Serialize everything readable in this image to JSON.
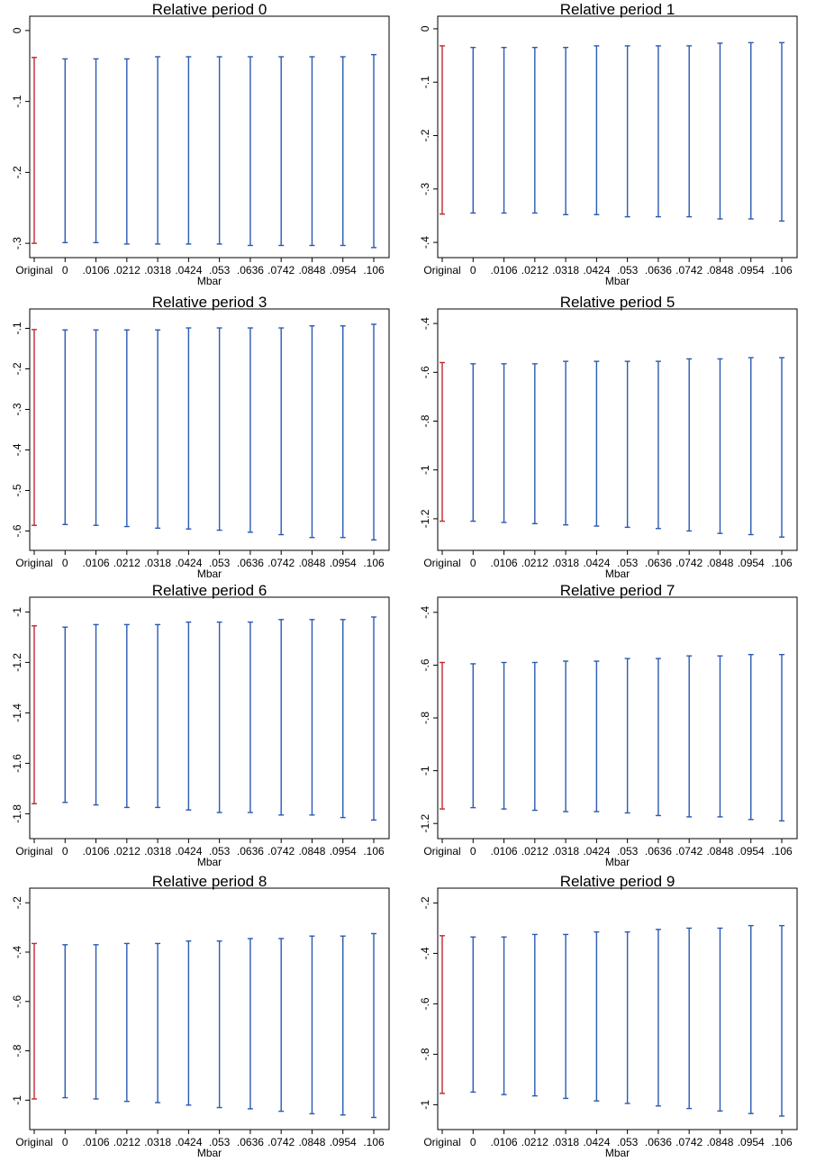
{
  "chart_data": [
    {
      "type": "errorbar",
      "title": "Relative period 0",
      "xlabel": "Mbar",
      "categories": [
        "Original",
        "0",
        ".0106",
        ".0212",
        ".0318",
        ".0424",
        ".053",
        ".0636",
        ".0742",
        ".0848",
        ".0954",
        ".106"
      ],
      "yticks": [
        0,
        -0.1,
        -0.2,
        -0.3
      ],
      "ytick_labels": [
        "0",
        "-.1",
        "-.2",
        "-.3"
      ],
      "ylim": [
        -0.31,
        0.01
      ],
      "lower": [
        -0.3,
        -0.299,
        -0.299,
        -0.301,
        -0.301,
        -0.301,
        -0.301,
        -0.303,
        -0.303,
        -0.303,
        -0.303,
        -0.306
      ],
      "upper": [
        -0.038,
        -0.04,
        -0.04,
        -0.04,
        -0.037,
        -0.037,
        -0.037,
        -0.037,
        -0.037,
        -0.037,
        -0.037,
        -0.034
      ],
      "colors": {
        "original": "#c0282d",
        "sensitivity": "#2a5ab3"
      }
    },
    {
      "type": "errorbar",
      "title": "Relative period 1",
      "xlabel": "Mbar",
      "categories": [
        "Original",
        "0",
        ".0106",
        ".0212",
        ".0318",
        ".0424",
        ".053",
        ".0636",
        ".0742",
        ".0848",
        ".0954",
        ".106"
      ],
      "yticks": [
        0,
        -0.1,
        -0.2,
        -0.3,
        -0.4
      ],
      "ytick_labels": [
        "0",
        "-.1",
        "-.2",
        "-.3",
        "-.4"
      ],
      "ylim": [
        -0.415,
        0.01
      ],
      "lower": [
        -0.347,
        -0.345,
        -0.345,
        -0.345,
        -0.348,
        -0.348,
        -0.352,
        -0.352,
        -0.352,
        -0.356,
        -0.356,
        -0.36
      ],
      "upper": [
        -0.032,
        -0.035,
        -0.035,
        -0.035,
        -0.035,
        -0.032,
        -0.032,
        -0.032,
        -0.032,
        -0.027,
        -0.026,
        -0.026
      ],
      "colors": {
        "original": "#c0282d",
        "sensitivity": "#2a5ab3"
      }
    },
    {
      "type": "errorbar",
      "title": "Relative period 3",
      "xlabel": "Mbar",
      "categories": [
        "Original",
        "0",
        ".0106",
        ".0212",
        ".0318",
        ".0424",
        ".053",
        ".0636",
        ".0742",
        ".0848",
        ".0954",
        ".106"
      ],
      "yticks": [
        -0.1,
        -0.2,
        -0.3,
        -0.4,
        -0.5,
        -0.6
      ],
      "ytick_labels": [
        "-.1",
        "-.2",
        "-.3",
        "-.4",
        "-.5",
        "-.6"
      ],
      "ylim": [
        -0.63,
        -0.07
      ],
      "lower": [
        -0.586,
        -0.584,
        -0.586,
        -0.589,
        -0.593,
        -0.595,
        -0.598,
        -0.603,
        -0.609,
        -0.616,
        -0.616,
        -0.622
      ],
      "upper": [
        -0.103,
        -0.104,
        -0.104,
        -0.104,
        -0.104,
        -0.099,
        -0.099,
        -0.099,
        -0.099,
        -0.094,
        -0.094,
        -0.09
      ],
      "colors": {
        "original": "#c0282d",
        "sensitivity": "#2a5ab3"
      }
    },
    {
      "type": "errorbar",
      "title": "Relative period 5",
      "xlabel": "Mbar",
      "categories": [
        "Original",
        "0",
        ".0106",
        ".0212",
        ".0318",
        ".0424",
        ".053",
        ".0636",
        ".0742",
        ".0848",
        ".0954",
        ".106"
      ],
      "yticks": [
        -0.4,
        -0.6,
        -0.8,
        -1,
        -1.2
      ],
      "ytick_labels": [
        "-.4",
        "-.6",
        "-.8",
        "-1",
        "-1.2"
      ],
      "ylim": [
        -1.3,
        -0.37
      ],
      "lower": [
        -1.21,
        -1.21,
        -1.215,
        -1.22,
        -1.225,
        -1.23,
        -1.235,
        -1.24,
        -1.25,
        -1.26,
        -1.265,
        -1.275
      ],
      "upper": [
        -0.56,
        -0.565,
        -0.565,
        -0.565,
        -0.555,
        -0.555,
        -0.555,
        -0.555,
        -0.545,
        -0.545,
        -0.54,
        -0.54
      ],
      "colors": {
        "original": "#c0282d",
        "sensitivity": "#2a5ab3"
      }
    },
    {
      "type": "errorbar",
      "title": "Relative period 6",
      "xlabel": "Mbar",
      "categories": [
        "Original",
        "0",
        ".0106",
        ".0212",
        ".0318",
        ".0424",
        ".053",
        ".0636",
        ".0742",
        ".0848",
        ".0954",
        ".106"
      ],
      "yticks": [
        -1,
        -1.2,
        -1.4,
        -1.6,
        -1.8
      ],
      "ytick_labels": [
        "-1",
        "-1.2",
        "-1.4",
        "-1.6",
        "-1.8"
      ],
      "ylim": [
        -1.87,
        -0.97
      ],
      "lower": [
        -1.76,
        -1.755,
        -1.765,
        -1.775,
        -1.775,
        -1.785,
        -1.795,
        -1.795,
        -1.805,
        -1.805,
        -1.815,
        -1.825
      ],
      "upper": [
        -1.055,
        -1.06,
        -1.05,
        -1.05,
        -1.05,
        -1.04,
        -1.04,
        -1.04,
        -1.03,
        -1.03,
        -1.03,
        -1.02
      ],
      "colors": {
        "original": "#c0282d",
        "sensitivity": "#2a5ab3"
      }
    },
    {
      "type": "errorbar",
      "title": "Relative period 7",
      "xlabel": "Mbar",
      "categories": [
        "Original",
        "0",
        ".0106",
        ".0212",
        ".0318",
        ".0424",
        ".053",
        ".0636",
        ".0742",
        ".0848",
        ".0954",
        ".106"
      ],
      "yticks": [
        -0.4,
        -0.6,
        -0.8,
        -1,
        -1.2
      ],
      "ytick_labels": [
        "-.4",
        "-.6",
        "-.8",
        "-1",
        "-1.2"
      ],
      "ylim": [
        -1.23,
        -0.37
      ],
      "lower": [
        -1.145,
        -1.14,
        -1.145,
        -1.15,
        -1.155,
        -1.155,
        -1.16,
        -1.17,
        -1.175,
        -1.175,
        -1.185,
        -1.19
      ],
      "upper": [
        -0.59,
        -0.595,
        -0.59,
        -0.59,
        -0.585,
        -0.585,
        -0.575,
        -0.575,
        -0.565,
        -0.565,
        -0.56,
        -0.56
      ],
      "colors": {
        "original": "#c0282d",
        "sensitivity": "#2a5ab3"
      }
    },
    {
      "type": "errorbar",
      "title": "Relative period 8",
      "xlabel": "Mbar",
      "categories": [
        "Original",
        "0",
        ".0106",
        ".0212",
        ".0318",
        ".0424",
        ".053",
        ".0636",
        ".0742",
        ".0848",
        ".0954",
        ".106"
      ],
      "yticks": [
        -0.2,
        -0.4,
        -0.6,
        -0.8,
        -1
      ],
      "ytick_labels": [
        "-.2",
        "-.4",
        "-.6",
        "-.8",
        "-1"
      ],
      "ylim": [
        -1.09,
        -0.17
      ],
      "lower": [
        -0.995,
        -0.99,
        -0.995,
        -1.005,
        -1.01,
        -1.02,
        -1.03,
        -1.035,
        -1.045,
        -1.055,
        -1.06,
        -1.07
      ],
      "upper": [
        -0.365,
        -0.37,
        -0.37,
        -0.365,
        -0.365,
        -0.355,
        -0.355,
        -0.345,
        -0.345,
        -0.335,
        -0.335,
        -0.325
      ],
      "colors": {
        "original": "#c0282d",
        "sensitivity": "#2a5ab3"
      }
    },
    {
      "type": "errorbar",
      "title": "Relative period 9",
      "xlabel": "Mbar",
      "categories": [
        "Original",
        "0",
        ".0106",
        ".0212",
        ".0318",
        ".0424",
        ".053",
        ".0636",
        ".0742",
        ".0848",
        ".0954",
        ".106"
      ],
      "yticks": [
        -0.2,
        -0.4,
        -0.6,
        -0.8,
        -1
      ],
      "ytick_labels": [
        "-.2",
        "-.4",
        "-.6",
        "-.8",
        "-1"
      ],
      "ylim": [
        -1.07,
        -0.17
      ],
      "lower": [
        -0.955,
        -0.95,
        -0.96,
        -0.965,
        -0.975,
        -0.985,
        -0.995,
        -1.005,
        -1.015,
        -1.025,
        -1.035,
        -1.045
      ],
      "upper": [
        -0.33,
        -0.335,
        -0.335,
        -0.325,
        -0.325,
        -0.315,
        -0.315,
        -0.305,
        -0.3,
        -0.3,
        -0.29,
        -0.29
      ],
      "colors": {
        "original": "#c0282d",
        "sensitivity": "#2a5ab3"
      }
    }
  ]
}
